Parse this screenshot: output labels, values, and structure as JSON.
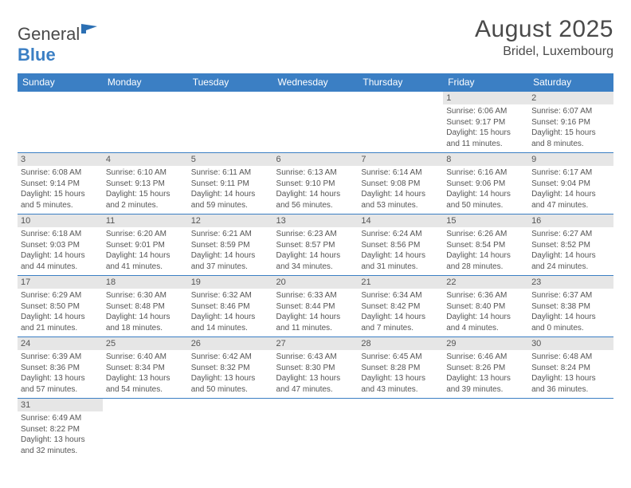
{
  "logo": {
    "text1": "General",
    "text2": "Blue"
  },
  "title": "August 2025",
  "location": "Bridel, Luxembourg",
  "weekdays": [
    "Sunday",
    "Monday",
    "Tuesday",
    "Wednesday",
    "Thursday",
    "Friday",
    "Saturday"
  ],
  "colors": {
    "header_bg": "#3b7fc4",
    "header_fg": "#ffffff",
    "daynum_bg": "#e6e6e6",
    "border": "#3b7fc4"
  },
  "weeks": [
    [
      {
        "num": "",
        "lines": []
      },
      {
        "num": "",
        "lines": []
      },
      {
        "num": "",
        "lines": []
      },
      {
        "num": "",
        "lines": []
      },
      {
        "num": "",
        "lines": []
      },
      {
        "num": "1",
        "lines": [
          "Sunrise: 6:06 AM",
          "Sunset: 9:17 PM",
          "Daylight: 15 hours",
          "and 11 minutes."
        ]
      },
      {
        "num": "2",
        "lines": [
          "Sunrise: 6:07 AM",
          "Sunset: 9:16 PM",
          "Daylight: 15 hours",
          "and 8 minutes."
        ]
      }
    ],
    [
      {
        "num": "3",
        "lines": [
          "Sunrise: 6:08 AM",
          "Sunset: 9:14 PM",
          "Daylight: 15 hours",
          "and 5 minutes."
        ]
      },
      {
        "num": "4",
        "lines": [
          "Sunrise: 6:10 AM",
          "Sunset: 9:13 PM",
          "Daylight: 15 hours",
          "and 2 minutes."
        ]
      },
      {
        "num": "5",
        "lines": [
          "Sunrise: 6:11 AM",
          "Sunset: 9:11 PM",
          "Daylight: 14 hours",
          "and 59 minutes."
        ]
      },
      {
        "num": "6",
        "lines": [
          "Sunrise: 6:13 AM",
          "Sunset: 9:10 PM",
          "Daylight: 14 hours",
          "and 56 minutes."
        ]
      },
      {
        "num": "7",
        "lines": [
          "Sunrise: 6:14 AM",
          "Sunset: 9:08 PM",
          "Daylight: 14 hours",
          "and 53 minutes."
        ]
      },
      {
        "num": "8",
        "lines": [
          "Sunrise: 6:16 AM",
          "Sunset: 9:06 PM",
          "Daylight: 14 hours",
          "and 50 minutes."
        ]
      },
      {
        "num": "9",
        "lines": [
          "Sunrise: 6:17 AM",
          "Sunset: 9:04 PM",
          "Daylight: 14 hours",
          "and 47 minutes."
        ]
      }
    ],
    [
      {
        "num": "10",
        "lines": [
          "Sunrise: 6:18 AM",
          "Sunset: 9:03 PM",
          "Daylight: 14 hours",
          "and 44 minutes."
        ]
      },
      {
        "num": "11",
        "lines": [
          "Sunrise: 6:20 AM",
          "Sunset: 9:01 PM",
          "Daylight: 14 hours",
          "and 41 minutes."
        ]
      },
      {
        "num": "12",
        "lines": [
          "Sunrise: 6:21 AM",
          "Sunset: 8:59 PM",
          "Daylight: 14 hours",
          "and 37 minutes."
        ]
      },
      {
        "num": "13",
        "lines": [
          "Sunrise: 6:23 AM",
          "Sunset: 8:57 PM",
          "Daylight: 14 hours",
          "and 34 minutes."
        ]
      },
      {
        "num": "14",
        "lines": [
          "Sunrise: 6:24 AM",
          "Sunset: 8:56 PM",
          "Daylight: 14 hours",
          "and 31 minutes."
        ]
      },
      {
        "num": "15",
        "lines": [
          "Sunrise: 6:26 AM",
          "Sunset: 8:54 PM",
          "Daylight: 14 hours",
          "and 28 minutes."
        ]
      },
      {
        "num": "16",
        "lines": [
          "Sunrise: 6:27 AM",
          "Sunset: 8:52 PM",
          "Daylight: 14 hours",
          "and 24 minutes."
        ]
      }
    ],
    [
      {
        "num": "17",
        "lines": [
          "Sunrise: 6:29 AM",
          "Sunset: 8:50 PM",
          "Daylight: 14 hours",
          "and 21 minutes."
        ]
      },
      {
        "num": "18",
        "lines": [
          "Sunrise: 6:30 AM",
          "Sunset: 8:48 PM",
          "Daylight: 14 hours",
          "and 18 minutes."
        ]
      },
      {
        "num": "19",
        "lines": [
          "Sunrise: 6:32 AM",
          "Sunset: 8:46 PM",
          "Daylight: 14 hours",
          "and 14 minutes."
        ]
      },
      {
        "num": "20",
        "lines": [
          "Sunrise: 6:33 AM",
          "Sunset: 8:44 PM",
          "Daylight: 14 hours",
          "and 11 minutes."
        ]
      },
      {
        "num": "21",
        "lines": [
          "Sunrise: 6:34 AM",
          "Sunset: 8:42 PM",
          "Daylight: 14 hours",
          "and 7 minutes."
        ]
      },
      {
        "num": "22",
        "lines": [
          "Sunrise: 6:36 AM",
          "Sunset: 8:40 PM",
          "Daylight: 14 hours",
          "and 4 minutes."
        ]
      },
      {
        "num": "23",
        "lines": [
          "Sunrise: 6:37 AM",
          "Sunset: 8:38 PM",
          "Daylight: 14 hours",
          "and 0 minutes."
        ]
      }
    ],
    [
      {
        "num": "24",
        "lines": [
          "Sunrise: 6:39 AM",
          "Sunset: 8:36 PM",
          "Daylight: 13 hours",
          "and 57 minutes."
        ]
      },
      {
        "num": "25",
        "lines": [
          "Sunrise: 6:40 AM",
          "Sunset: 8:34 PM",
          "Daylight: 13 hours",
          "and 54 minutes."
        ]
      },
      {
        "num": "26",
        "lines": [
          "Sunrise: 6:42 AM",
          "Sunset: 8:32 PM",
          "Daylight: 13 hours",
          "and 50 minutes."
        ]
      },
      {
        "num": "27",
        "lines": [
          "Sunrise: 6:43 AM",
          "Sunset: 8:30 PM",
          "Daylight: 13 hours",
          "and 47 minutes."
        ]
      },
      {
        "num": "28",
        "lines": [
          "Sunrise: 6:45 AM",
          "Sunset: 8:28 PM",
          "Daylight: 13 hours",
          "and 43 minutes."
        ]
      },
      {
        "num": "29",
        "lines": [
          "Sunrise: 6:46 AM",
          "Sunset: 8:26 PM",
          "Daylight: 13 hours",
          "and 39 minutes."
        ]
      },
      {
        "num": "30",
        "lines": [
          "Sunrise: 6:48 AM",
          "Sunset: 8:24 PM",
          "Daylight: 13 hours",
          "and 36 minutes."
        ]
      }
    ],
    [
      {
        "num": "31",
        "lines": [
          "Sunrise: 6:49 AM",
          "Sunset: 8:22 PM",
          "Daylight: 13 hours",
          "and 32 minutes."
        ]
      },
      {
        "num": "",
        "lines": []
      },
      {
        "num": "",
        "lines": []
      },
      {
        "num": "",
        "lines": []
      },
      {
        "num": "",
        "lines": []
      },
      {
        "num": "",
        "lines": []
      },
      {
        "num": "",
        "lines": []
      }
    ]
  ]
}
